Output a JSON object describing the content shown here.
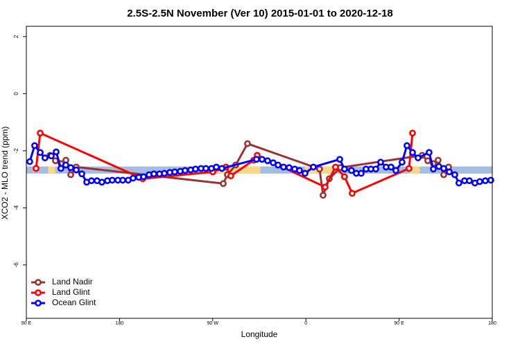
{
  "chart_data": {
    "type": "line",
    "title": "2.5S-2.5N November (Ver 10)   2015-01-01 to 2020-12-18",
    "x_label": "Longitude",
    "y_label": "XCO2 - MLO trend (ppm)",
    "xlim": [
      90,
      540
    ],
    "xticks": [
      {
        "value": 90,
        "label": "90 E"
      },
      180,
      {
        "value": 270,
        "label": "90 W"
      },
      {
        "value": 360,
        "label": "0"
      },
      {
        "value": 450,
        "label": "90 E"
      },
      {
        "value": 540,
        "label": "180"
      }
    ],
    "ylim": [
      -7.87,
      2.36
    ],
    "yticks": [
      2,
      0,
      -2,
      -4,
      -6
    ],
    "grid": false,
    "legend": "bottom left",
    "band": {
      "range": [
        -2.8,
        -2.55
      ],
      "color": "#a7bddf"
    },
    "highlight": {
      "ranges": [
        [
          111,
          118
        ],
        [
          272,
          316
        ],
        [
          359,
          386
        ],
        [
          460,
          470
        ]
      ],
      "color": "#f8d88a"
    },
    "series": [
      {
        "name": "Land Nadir",
        "color": "#993333",
        "x": [
          112.8,
          118.1,
          123.5,
          128.2,
          132.9,
          138.2,
          280.2,
          284.2,
          292.2,
          303.6,
          373.2,
          376.6,
          382.6,
          393.3,
          472.3,
          477.7,
          483.1,
          487.7,
          493.1,
          497.8
        ],
        "values": [
          -2.16,
          -2.35,
          -2.45,
          -2.33,
          -2.84,
          -2.57,
          -3.15,
          -2.84,
          -2.5,
          -1.75,
          -2.64,
          -3.56,
          -2.98,
          -2.59,
          -2.16,
          -2.35,
          -2.45,
          -2.33,
          -2.84,
          -2.57
        ]
      },
      {
        "name": "Land Glint",
        "color": "#ff0000",
        "x": [
          99.4,
          103.4,
          202.5,
          270.1,
          282.8,
          287.5,
          309.6,
          313.0,
          378.6,
          388.6,
          397.3,
          404.7,
          459.6,
          463.0
        ],
        "values": [
          -2.62,
          -1.38,
          -2.98,
          -2.74,
          -2.57,
          -2.88,
          -2.33,
          -2.16,
          -3.27,
          -2.57,
          -2.91,
          -3.49,
          -2.62,
          -1.38
        ]
      },
      {
        "name": "Ocean Glint",
        "color": "#0000ff",
        "x": [
          93.3,
          98.0,
          103.4,
          108.0,
          114.1,
          118.8,
          123.4,
          128.1,
          132.9,
          138.2,
          143.6,
          148.3,
          152.9,
          158.3,
          163.0,
          168.3,
          173.0,
          178.4,
          183.1,
          188.4,
          193.1,
          198.5,
          203.2,
          208.5,
          213.2,
          218.6,
          223.3,
          228.6,
          233.3,
          238.7,
          243.3,
          248.7,
          253.4,
          258.7,
          263.4,
          268.8,
          273.5,
          278.8,
          312.3,
          317.7,
          323.0,
          328.4,
          333.1,
          338.4,
          343.8,
          349.1,
          353.8,
          359.2,
          367.2,
          392.7,
          397.3,
          404.0,
          408.7,
          413.4,
          418.1,
          422.8,
          427.5,
          432.2,
          437.5,
          442.2,
          446.9,
          452.9,
          457.6,
          463.0,
          468.3,
          479.0,
          483.1,
          488.4,
          493.1,
          498.5,
          503.8,
          507.8,
          513.2,
          517.9,
          523.2,
          527.9,
          533.3,
          538.6
        ],
        "values": [
          -2.38,
          -1.82,
          -2.06,
          -2.25,
          -2.18,
          -2.04,
          -2.62,
          -2.5,
          -2.59,
          -2.67,
          -2.81,
          -3.1,
          -3.05,
          -3.05,
          -3.1,
          -3.05,
          -3.03,
          -3.03,
          -3.03,
          -3.03,
          -2.96,
          -2.93,
          -2.91,
          -2.84,
          -2.81,
          -2.81,
          -2.79,
          -2.76,
          -2.74,
          -2.72,
          -2.69,
          -2.67,
          -2.64,
          -2.62,
          -2.62,
          -2.62,
          -2.57,
          -2.62,
          -2.3,
          -2.3,
          -2.35,
          -2.42,
          -2.5,
          -2.57,
          -2.59,
          -2.64,
          -2.69,
          -2.79,
          -2.57,
          -2.3,
          -2.64,
          -2.69,
          -2.79,
          -2.79,
          -2.64,
          -2.64,
          -2.64,
          -2.4,
          -2.57,
          -2.57,
          -2.69,
          -2.4,
          -1.82,
          -2.06,
          -2.25,
          -2.06,
          -2.64,
          -2.55,
          -2.62,
          -2.74,
          -2.84,
          -3.13,
          -3.05,
          -3.05,
          -3.13,
          -3.08,
          -3.05,
          -3.03
        ]
      }
    ]
  }
}
